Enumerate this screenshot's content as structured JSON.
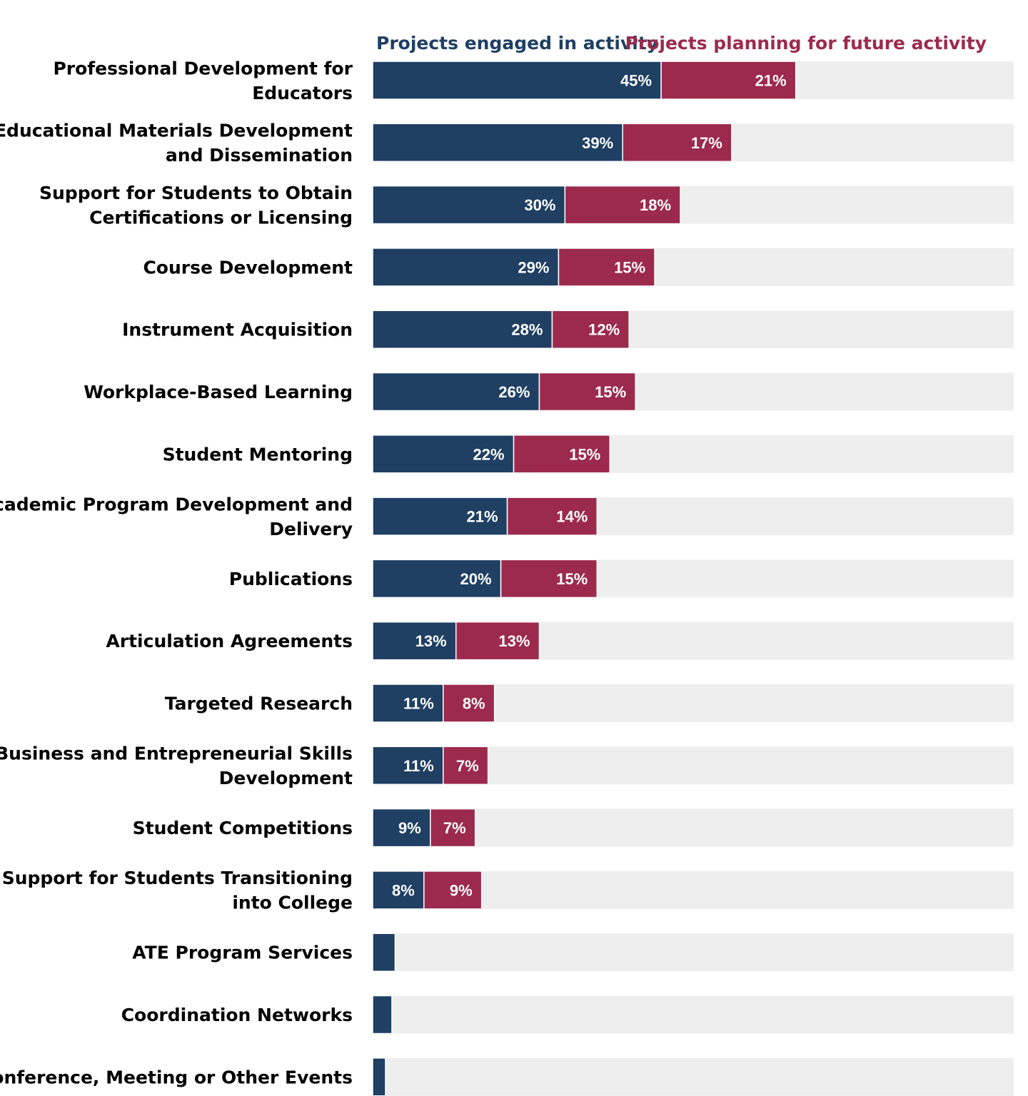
{
  "chart_data": {
    "type": "bar",
    "orientation": "horizontal",
    "stacked": true,
    "xlim": [
      0,
      100
    ],
    "legend_position": "top",
    "track_color": "#eeeeee",
    "categories": [
      "Professional Development for Educators",
      "Educational Materials Development and Dissemination",
      "Support for Students to Obtain Certifications or Licensing",
      "Course Development",
      "Instrument Acquisition",
      "Workplace-Based Learning",
      "Student Mentoring",
      "Academic Program Development and Delivery",
      "Publications",
      "Articulation Agreements",
      "Targeted Research",
      "Business and Entrepreneurial Skills Development",
      "Student Competitions",
      "Support for Students Transitioning into College",
      "ATE Program Services",
      "Coordination Networks",
      "Conference, Meeting or Other Events"
    ],
    "category_lines": [
      [
        "Professional Development for",
        "Educators"
      ],
      [
        "Educational Materials Development",
        "and Dissemination"
      ],
      [
        "Support for Students to Obtain",
        "Certifications or Licensing"
      ],
      [
        "Course Development"
      ],
      [
        "Instrument Acquisition"
      ],
      [
        "Workplace-Based Learning"
      ],
      [
        "Student Mentoring"
      ],
      [
        "Academic Program Development and",
        "Delivery"
      ],
      [
        "Publications"
      ],
      [
        "Articulation Agreements"
      ],
      [
        "Targeted Research"
      ],
      [
        "Business and Entrepreneurial Skills",
        "Development"
      ],
      [
        "Student Competitions"
      ],
      [
        "Support for Students Transitioning",
        "into College"
      ],
      [
        "ATE Program Services"
      ],
      [
        "Coordination Networks"
      ],
      [
        "Conference, Meeting or Other Events"
      ]
    ],
    "series": [
      {
        "name": "Projects engaged in activity",
        "color": "#1f3f63",
        "values": [
          45,
          39,
          30,
          29,
          28,
          26,
          22,
          21,
          20,
          13,
          11,
          11,
          9,
          8,
          3.5,
          3,
          2
        ],
        "labels": [
          "45%",
          "39%",
          "30%",
          "29%",
          "28%",
          "26%",
          "22%",
          "21%",
          "20%",
          "13%",
          "11%",
          "11%",
          "9%",
          "8%",
          "",
          "",
          ""
        ]
      },
      {
        "name": "Projects planning for future activity",
        "color": "#9c2a4c",
        "values": [
          21,
          17,
          18,
          15,
          12,
          15,
          15,
          14,
          15,
          13,
          8,
          7,
          7,
          9,
          0,
          0,
          0
        ],
        "labels": [
          "21%",
          "17%",
          "18%",
          "15%",
          "12%",
          "15%",
          "15%",
          "14%",
          "15%",
          "13%",
          "8%",
          "7%",
          "7%",
          "9%",
          "",
          "",
          ""
        ]
      }
    ]
  }
}
